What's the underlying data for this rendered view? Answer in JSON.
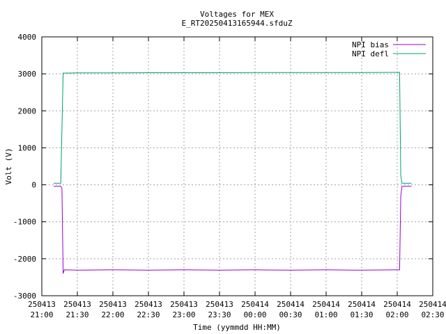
{
  "chart_data": {
    "type": "line",
    "title": "Voltages for MEX",
    "subtitle": "E_RT20250413165944.sfduZ",
    "xlabel": "Time (yymmdd HH:MM)",
    "ylabel": "Volt (V)",
    "xlim": [
      "250413 21:00",
      "250414 02:30"
    ],
    "ylim": [
      -3000,
      4000
    ],
    "grid": true,
    "legend_position": "top-right",
    "x_ticks": [
      {
        "date": "250413",
        "time": "21:00"
      },
      {
        "date": "250413",
        "time": "21:30"
      },
      {
        "date": "250413",
        "time": "22:00"
      },
      {
        "date": "250413",
        "time": "22:30"
      },
      {
        "date": "250413",
        "time": "23:00"
      },
      {
        "date": "250413",
        "time": "23:30"
      },
      {
        "date": "250414",
        "time": "00:00"
      },
      {
        "date": "250414",
        "time": "00:30"
      },
      {
        "date": "250414",
        "time": "01:00"
      },
      {
        "date": "250414",
        "time": "01:30"
      },
      {
        "date": "250414",
        "time": "02:00"
      },
      {
        "date": "250414",
        "time": "02:30"
      }
    ],
    "y_ticks": [
      "-3000",
      "-2000",
      "-1000",
      "0",
      "1000",
      "2000",
      "3000",
      "4000"
    ],
    "series": [
      {
        "name": "NPI bias",
        "color": "#9400d3",
        "points": [
          [
            "250413 21:10",
            -40
          ],
          [
            "250413 21:16",
            -40
          ],
          [
            "250413 21:17",
            -100
          ],
          [
            "250413 21:18",
            -2400
          ],
          [
            "250413 21:19",
            -2300
          ],
          [
            "250413 21:30",
            -2310
          ],
          [
            "250413 22:00",
            -2300
          ],
          [
            "250413 22:30",
            -2310
          ],
          [
            "250413 23:00",
            -2300
          ],
          [
            "250413 23:30",
            -2310
          ],
          [
            "250414 00:00",
            -2300
          ],
          [
            "250414 00:30",
            -2310
          ],
          [
            "250414 01:00",
            -2300
          ],
          [
            "250414 01:30",
            -2310
          ],
          [
            "250414 02:00",
            -2300
          ],
          [
            "250414 02:02",
            -2300
          ],
          [
            "250414 02:03",
            -300
          ],
          [
            "250414 02:04",
            -40
          ],
          [
            "250414 02:12",
            -40
          ]
        ]
      },
      {
        "name": "NPI defl",
        "color": "#009e73",
        "points": [
          [
            "250413 21:10",
            40
          ],
          [
            "250413 21:16",
            40
          ],
          [
            "250413 21:18",
            3020
          ],
          [
            "250413 21:30",
            3025
          ],
          [
            "250413 22:00",
            3025
          ],
          [
            "250413 22:30",
            3030
          ],
          [
            "250413 23:00",
            3030
          ],
          [
            "250413 23:30",
            3030
          ],
          [
            "250414 00:00",
            3035
          ],
          [
            "250414 00:30",
            3035
          ],
          [
            "250414 01:00",
            3035
          ],
          [
            "250414 01:30",
            3035
          ],
          [
            "250414 02:00",
            3040
          ],
          [
            "250414 02:02",
            3040
          ],
          [
            "250414 02:03",
            250
          ],
          [
            "250414 02:04",
            40
          ],
          [
            "250414 02:12",
            40
          ]
        ]
      }
    ]
  }
}
